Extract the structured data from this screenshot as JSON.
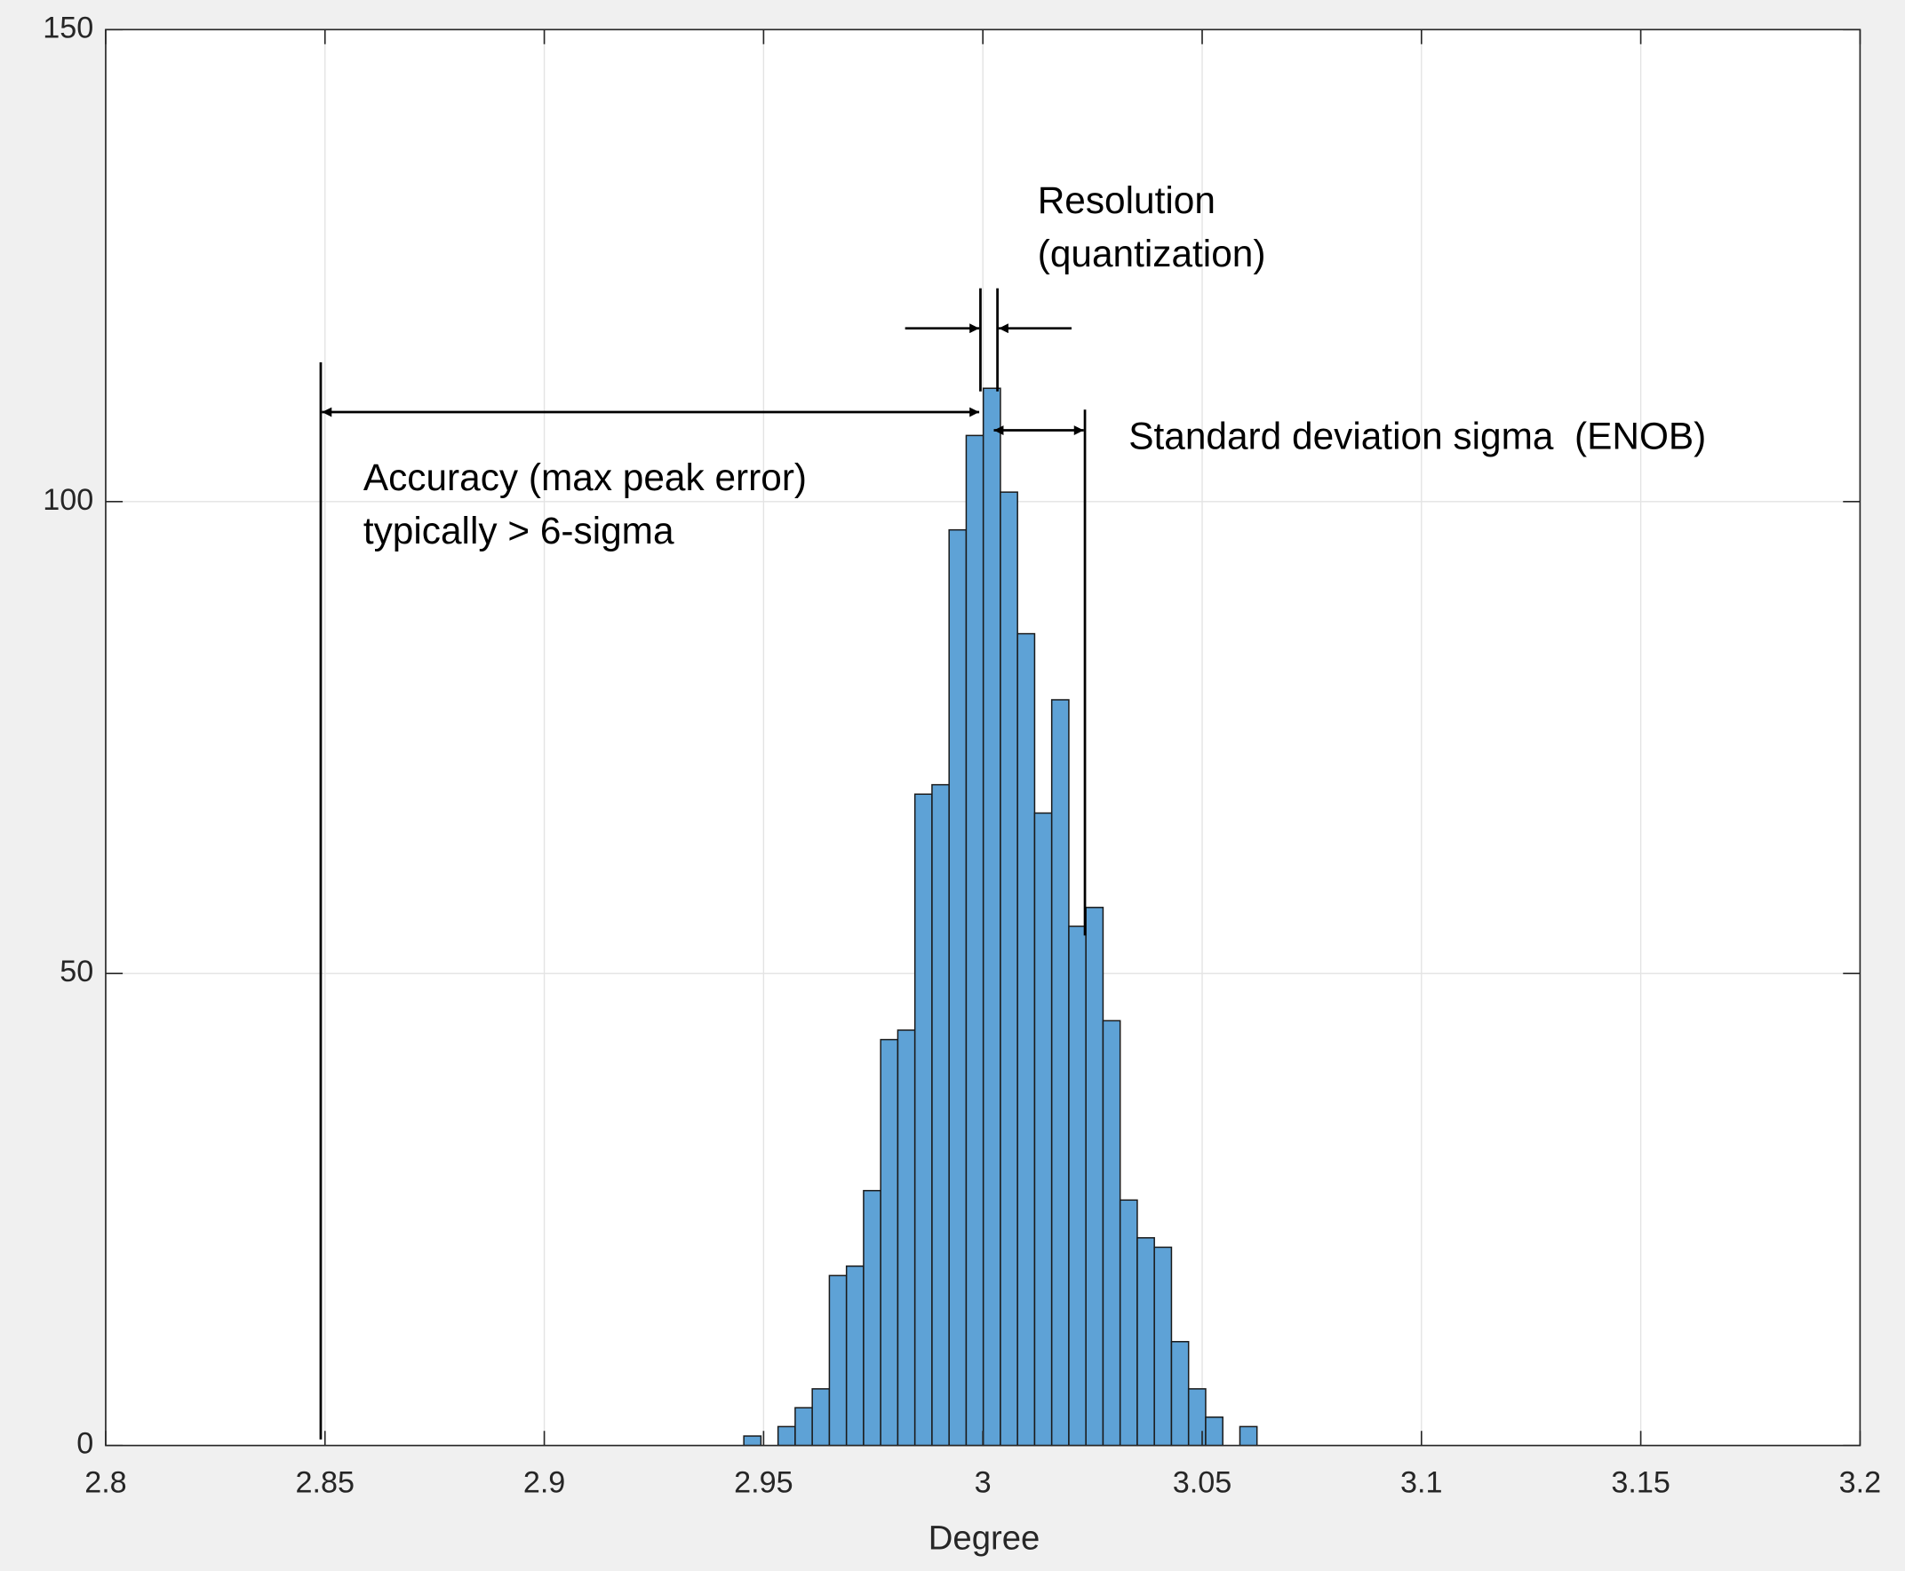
{
  "chart_data": {
    "type": "histogram",
    "xlabel": "Degree",
    "bins": [
      2.9455,
      2.9494,
      2.9533,
      2.9572,
      2.9611,
      2.965,
      2.9689,
      2.9728,
      2.9767,
      2.9806,
      2.9845,
      2.9884,
      2.9923,
      2.9962,
      3.0001,
      3.004,
      3.0079,
      3.0118,
      3.0157,
      3.0196,
      3.0235,
      3.0274,
      3.0313,
      3.0352,
      3.0391,
      3.043,
      3.0469,
      3.0508,
      3.0547,
      3.0586,
      3.0625
    ],
    "counts": [
      1,
      0,
      2,
      4,
      6,
      18,
      19,
      27,
      43,
      44,
      69,
      70,
      97,
      107,
      112,
      101,
      86,
      67,
      79,
      55,
      57,
      45,
      26,
      22,
      21,
      11,
      6,
      3,
      0,
      2
    ],
    "color": "#5ea2d6",
    "xlim": [
      2.8,
      3.2
    ],
    "xticks": [
      2.8,
      2.85,
      2.9,
      2.95,
      3,
      3.05,
      3.1,
      3.15,
      3.2
    ],
    "ylim": [
      0,
      150
    ],
    "yticks": [
      0,
      50,
      100,
      150
    ],
    "grid": true,
    "annotations": [
      "Resolution",
      "(quantization)",
      "Accuracy (max peak error)",
      "typically > 6-sigma",
      "Standard deviation sigma  (ENOB)"
    ]
  }
}
